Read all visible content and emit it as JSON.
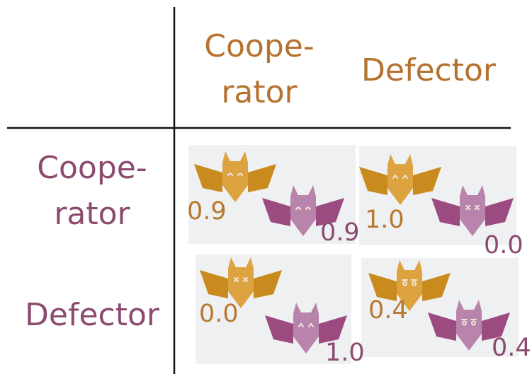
{
  "column_headers": [
    [
      "Coope-",
      "rator"
    ],
    [
      "Defector"
    ]
  ],
  "row_headers": [
    [
      "Coope-",
      "rator"
    ],
    [
      "Defector"
    ]
  ],
  "payoffs": [
    [
      {
        "orange": "0.9",
        "purple": "0.9"
      },
      {
        "orange": "1.0",
        "purple": "0.0"
      }
    ],
    [
      {
        "orange": "0.0",
        "purple": "1.0"
      },
      {
        "orange": "0.4",
        "purple": "0.4"
      }
    ]
  ]
}
